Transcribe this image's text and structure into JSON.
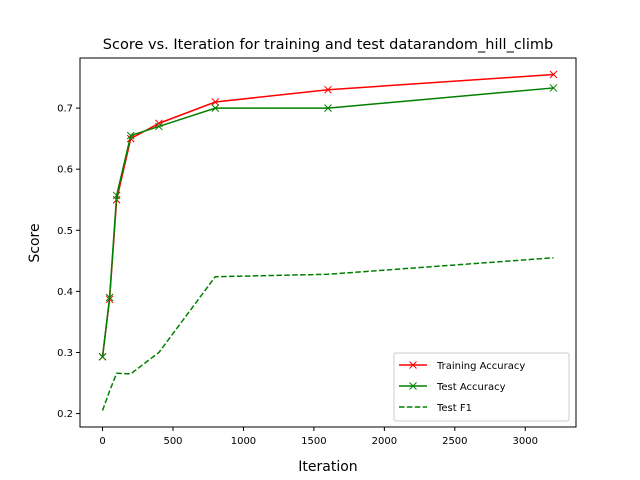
{
  "chart_data": {
    "type": "line",
    "title": "Score vs. Iteration for training and test datarandom_hill_climb",
    "xlabel": "Iteration",
    "ylabel": "Score",
    "xlim": [
      -160,
      3360
    ],
    "ylim": [
      0.178,
      0.782
    ],
    "xticks": [
      0,
      500,
      1000,
      1500,
      2000,
      2500,
      3000
    ],
    "yticks": [
      0.2,
      0.3,
      0.4,
      0.5,
      0.6,
      0.7
    ],
    "legend_position": "lower-right",
    "grid": false,
    "x": [
      0,
      50,
      100,
      200,
      400,
      800,
      1600,
      3200
    ],
    "series": [
      {
        "name": "Training Accuracy",
        "color": "#ff0000",
        "linestyle": "solid",
        "marker": "x",
        "values": [
          0.293,
          0.387,
          0.55,
          0.65,
          0.675,
          0.71,
          0.73,
          0.755
        ]
      },
      {
        "name": "Test Accuracy",
        "color": "#008000",
        "linestyle": "solid",
        "marker": "x",
        "values": [
          0.293,
          0.39,
          0.557,
          0.655,
          0.67,
          0.7,
          0.7,
          0.733
        ]
      },
      {
        "name": "Test F1",
        "color": "#008000",
        "linestyle": "dashed",
        "marker": "none",
        "values": [
          0.205,
          0.237,
          0.266,
          0.265,
          0.3,
          0.424,
          0.428,
          0.455
        ]
      }
    ]
  }
}
